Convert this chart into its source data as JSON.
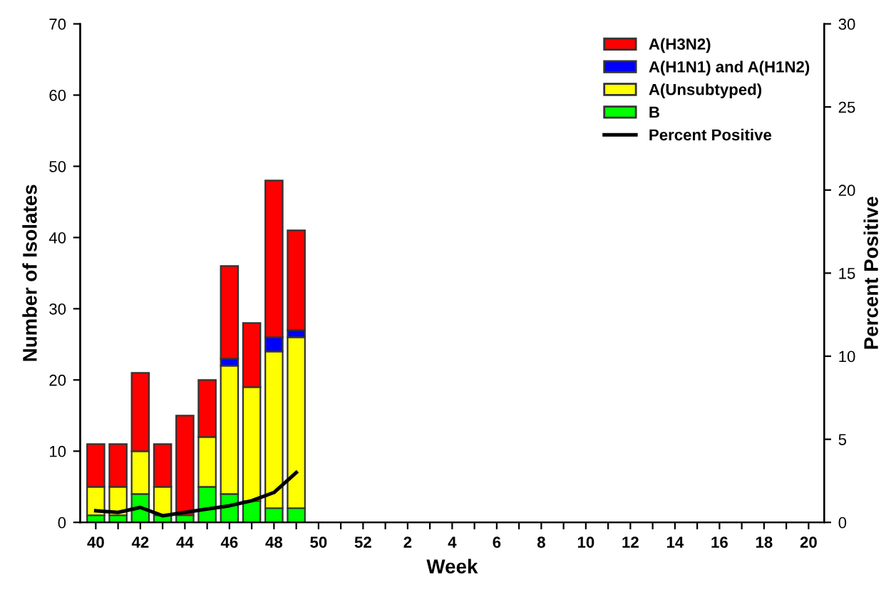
{
  "chart_data": {
    "type": "bar",
    "stacked": true,
    "xlabel": "Week",
    "ylabel": "Number of Isolates",
    "y2label": "Percent Positive",
    "categories": [
      "40",
      null,
      "42",
      null,
      "44",
      null,
      "46",
      null,
      "48",
      null,
      "50",
      null,
      "52",
      null,
      "2",
      null,
      "4",
      null,
      "6",
      null,
      "8",
      null,
      "10",
      null,
      "12",
      null,
      "14",
      null,
      "16",
      null,
      "18",
      null,
      "20"
    ],
    "series": [
      {
        "name": "B",
        "color": "#00ff00",
        "values": [
          1,
          1,
          4,
          1,
          1,
          5,
          4,
          3,
          2,
          2,
          null,
          null,
          null,
          null,
          null,
          null,
          null,
          null,
          null,
          null,
          null,
          null,
          null,
          null,
          null,
          null,
          null,
          null,
          null,
          null,
          null,
          null,
          null
        ]
      },
      {
        "name": "A(Unsubtyped)",
        "color": "#ffff00",
        "values": [
          4,
          4,
          6,
          4,
          0,
          7,
          18,
          16,
          22,
          24,
          null,
          null,
          null,
          null,
          null,
          null,
          null,
          null,
          null,
          null,
          null,
          null,
          null,
          null,
          null,
          null,
          null,
          null,
          null,
          null,
          null,
          null,
          null
        ]
      },
      {
        "name": "A(H1N1) and A(H1N2)",
        "color": "#0000ff",
        "values": [
          0,
          0,
          0,
          0,
          0,
          0,
          1,
          0,
          2,
          1,
          null,
          null,
          null,
          null,
          null,
          null,
          null,
          null,
          null,
          null,
          null,
          null,
          null,
          null,
          null,
          null,
          null,
          null,
          null,
          null,
          null,
          null,
          null
        ]
      },
      {
        "name": "A(H3N2)",
        "color": "#ff0000",
        "values": [
          6,
          6,
          11,
          6,
          14,
          8,
          13,
          9,
          22,
          14,
          null,
          null,
          null,
          null,
          null,
          null,
          null,
          null,
          null,
          null,
          null,
          null,
          null,
          null,
          null,
          null,
          null,
          null,
          null,
          null,
          null,
          null,
          null
        ]
      },
      {
        "name": "Percent Positive",
        "type": "line",
        "axis": "y2",
        "color": "#000000",
        "values": [
          0.7,
          0.6,
          0.9,
          0.4,
          0.6,
          0.8,
          1.0,
          1.3,
          1.8,
          3.0,
          null,
          null,
          null,
          null,
          null,
          null,
          null,
          null,
          null,
          null,
          null,
          null,
          null,
          null,
          null,
          null,
          null,
          null,
          null,
          null,
          null,
          null,
          null
        ]
      }
    ],
    "ylim": [
      0,
      70
    ],
    "yticks": [
      0,
      10,
      20,
      30,
      40,
      50,
      60,
      70
    ],
    "y2lim": [
      0,
      30
    ],
    "y2ticks": [
      0,
      5,
      10,
      15,
      20,
      25,
      30
    ],
    "legend": "top right",
    "grid": false
  }
}
